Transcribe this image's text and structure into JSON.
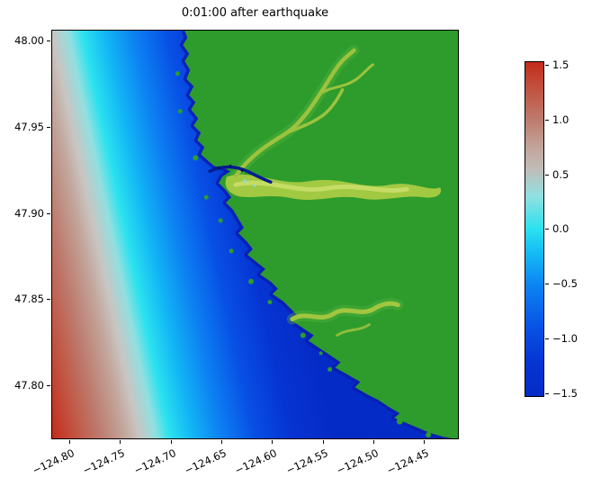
{
  "figure": {
    "title": "0:01:00 after earthquake",
    "background": "#ffffff"
  },
  "axes": {
    "x_ticks": [
      "−124.80",
      "−124.75",
      "−124.70",
      "−124.65",
      "−124.60",
      "−124.55",
      "−124.50",
      "−124.45"
    ],
    "y_ticks": [
      "48.00",
      "47.95",
      "47.90",
      "47.85",
      "47.80"
    ]
  },
  "colorbar": {
    "ticks": [
      "1.5",
      "1.0",
      "0.5",
      "0.0",
      "−0.5",
      "−1.0",
      "−1.5"
    ],
    "range": [
      -1.5,
      1.5
    ]
  },
  "chart_data": {
    "type": "heatmap",
    "title": "0:01:00 after earthquake",
    "xlabel": "",
    "ylabel": "",
    "x_ticks": [
      -124.8,
      -124.75,
      -124.7,
      -124.65,
      -124.6,
      -124.55,
      -124.5,
      -124.45
    ],
    "y_ticks": [
      48.0,
      47.95,
      47.9,
      47.85,
      47.8
    ],
    "xlim": [
      -124.818,
      -124.416
    ],
    "ylim": [
      47.769,
      48.006
    ],
    "grid": false,
    "legend": "none",
    "colorbar_ticks": [
      1.5,
      1.0,
      0.5,
      0.0,
      -0.5,
      -1.0,
      -1.5
    ],
    "colorbar_range": [
      -1.5,
      1.5
    ],
    "field": "sea-surface elevation one minute after earthquake; diagonal plane-wave bands offshore, solid green land with yellow-green river valleys on the right",
    "colormap_stops": [
      {
        "value": 1.5,
        "color": "#c22b1b"
      },
      {
        "value": 1.0,
        "color": "#bd7a6c"
      },
      {
        "value": 0.5,
        "color": "#c0bcb8"
      },
      {
        "value": 0.0,
        "color": "#2be2ef"
      },
      {
        "value": -0.5,
        "color": "#0c82f2"
      },
      {
        "value": -1.0,
        "color": "#0748e0"
      },
      {
        "value": -1.5,
        "color": "#052bc6"
      }
    ],
    "wave_samples": [
      {
        "lon": -124.815,
        "lat": 47.775,
        "value": 1.2
      },
      {
        "lon": -124.81,
        "lat": 47.84,
        "value": 0.7
      },
      {
        "lon": -124.8,
        "lat": 47.9,
        "value": 0.45
      },
      {
        "lon": -124.79,
        "lat": 47.95,
        "value": 0.2
      },
      {
        "lon": -124.788,
        "lat": 48.0,
        "value": 0.0
      },
      {
        "lon": -124.75,
        "lat": 47.85,
        "value": 0.1
      },
      {
        "lon": -124.7,
        "lat": 47.77,
        "value": 0.0
      },
      {
        "lon": -124.7,
        "lat": 47.9,
        "value": -0.45
      },
      {
        "lon": -124.65,
        "lat": 47.93,
        "value": -0.9
      },
      {
        "lon": -124.62,
        "lat": 47.8,
        "value": -1.1
      },
      {
        "lon": -124.55,
        "lat": 47.8,
        "value": -1.3
      },
      {
        "lon": -124.5,
        "lat": 47.78,
        "value": -1.4
      }
    ],
    "land": {
      "color_hex": "#2d9c2d",
      "features": [
        "coastline runs from top edge near lon -124.655 southeast to bottom-right corner",
        "river mouth and dark tidal channel near lat 47.905",
        "broad yellow-green east-west estuary valley just north of lat 47.90",
        "northern river branch trending northeast toward top of map",
        "southern yellow-green river valley near lat 47.845",
        "small offshore islands scattered along the coast"
      ]
    }
  }
}
